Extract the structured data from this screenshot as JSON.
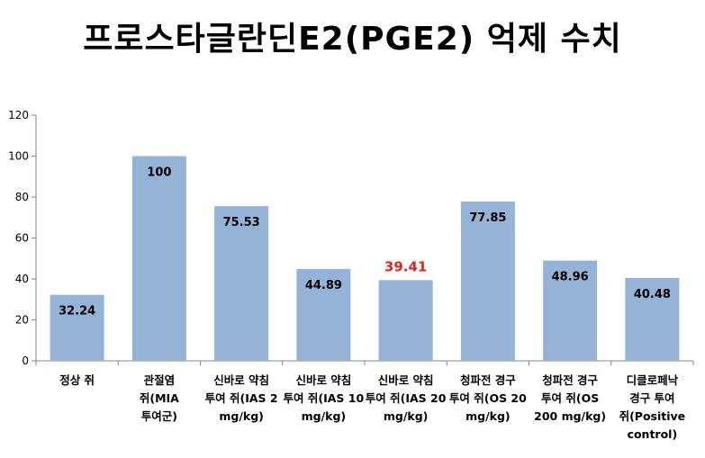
{
  "chart_data": {
    "type": "bar",
    "title": "프로스타글란딘E2(PGE2) 억제 수치",
    "xlabel": "",
    "ylabel": "",
    "ylim": [
      0,
      120
    ],
    "yticks": [
      "0",
      "20",
      "40",
      "60",
      "80",
      "100",
      "120"
    ],
    "categories": [
      [
        "정상 쥐"
      ],
      [
        "관절염",
        "쥐(MIA",
        "투여군)"
      ],
      [
        "신바로 약침",
        "투여 쥐(IAS 2",
        "mg/kg)"
      ],
      [
        "신바로 약침",
        "투여 쥐(IAS 10",
        "mg/kg)"
      ],
      [
        "신바로 약침",
        "투여 쥐(IAS 20",
        "mg/kg)"
      ],
      [
        "청파전 경구",
        "투여 쥐(OS 20",
        "mg/kg)"
      ],
      [
        "청파전 경구",
        "투여 쥐(OS",
        "200 mg/kg)"
      ],
      [
        "디클로페낙",
        "경구 투여",
        "쥐(Positive",
        "control)"
      ]
    ],
    "values": [
      32.24,
      100,
      75.53,
      44.89,
      39.41,
      77.85,
      48.96,
      40.48
    ],
    "data_labels": [
      "32.24",
      "100",
      "75.53",
      "44.89",
      "39.41",
      "77.85",
      "48.96",
      "40.48"
    ],
    "highlight_index": 4,
    "grid": false,
    "legend": "none",
    "colors": {
      "bar": "#95b3d7",
      "highlight_label": "#e3241b",
      "axis": "#868686"
    }
  }
}
